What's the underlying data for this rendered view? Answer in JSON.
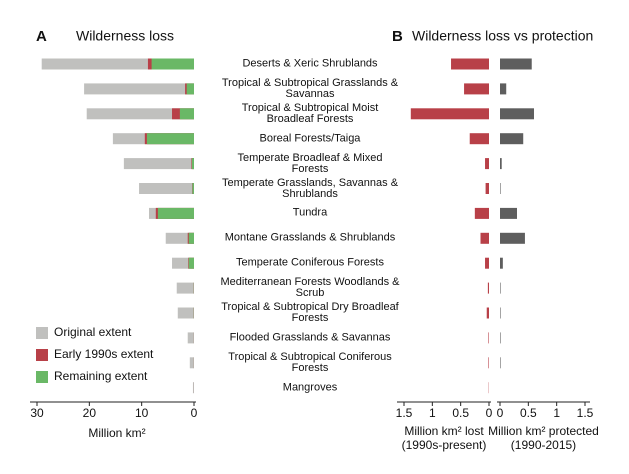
{
  "chart_data": [
    {
      "type": "bar",
      "panel": "A",
      "title": "Wilderness loss",
      "orientation": "horizontal",
      "overlay": true,
      "categories": [
        "Deserts & Xeric Shrublands",
        "Tropical & Subtropical Grasslands & Savannas",
        "Tropical & Subtropical Moist Broadleaf Forests",
        "Boreal Forests/Taiga",
        "Temperate Broadleaf & Mixed Forests",
        "Temperate Grasslands, Savannas & Shrublands",
        "Tundra",
        "Montane Grasslands & Shrublands",
        "Temperate Coniferous Forests",
        "Mediterranean Forests Woodlands & Scrub",
        "Tropical & Subtropical  Dry Broadleaf Forests",
        "Flooded Grasslands & Savannas",
        "Tropical & Subtropical Coniferous Forests",
        "Mangroves"
      ],
      "series": [
        {
          "name": "Original extent",
          "color": "#c0c0be",
          "values": [
            29.1,
            21,
            20.5,
            15.5,
            13.4,
            10.5,
            8.6,
            5.4,
            4.2,
            3.3,
            3.1,
            1.2,
            0.8,
            0.2
          ]
        },
        {
          "name": "Early 1990s extent",
          "color": "#b84048",
          "values": [
            8.8,
            1.7,
            4.2,
            9.4,
            0.5,
            0.35,
            7.3,
            1.2,
            1.1,
            0.05,
            0.05,
            0.02,
            0.02,
            0.01
          ]
        },
        {
          "name": "Remaining extent",
          "color": "#6ab866",
          "values": [
            8.1,
            1.4,
            2.7,
            9.0,
            0.4,
            0.3,
            6.9,
            1.0,
            1.0,
            0.04,
            0.04,
            0.01,
            0.01,
            0.005
          ]
        }
      ],
      "xlabel": "Million km²",
      "xlim": [
        30,
        0
      ],
      "xticks": [
        30,
        20,
        10,
        0
      ],
      "legend": "lower left"
    },
    {
      "type": "bar",
      "panel": "B",
      "title": "Wilderness loss vs protection",
      "orientation": "horizontal",
      "color": "#b84048",
      "values": [
        0.67,
        0.44,
        1.38,
        0.34,
        0.07,
        0.06,
        0.25,
        0.15,
        0.07,
        0.02,
        0.04,
        0.01,
        0.01,
        0.005
      ],
      "xlabel": [
        "Million km² lost",
        "(1990s-present)"
      ],
      "xlim": [
        1.5,
        0
      ],
      "xticks": [
        1.5,
        1,
        0.5,
        0
      ]
    },
    {
      "type": "bar",
      "orientation": "horizontal",
      "color": "#5e5e5e",
      "values": [
        0.56,
        0.11,
        0.6,
        0.41,
        0.03,
        0.01,
        0.3,
        0.44,
        0.05,
        0.01,
        0.01,
        0.01,
        0.01,
        0
      ],
      "xlabel": [
        "Million km² protected",
        "(1990-2015)"
      ],
      "xlim": [
        0,
        1.5
      ],
      "xticks": [
        0,
        0.5,
        1,
        1.5
      ]
    }
  ]
}
